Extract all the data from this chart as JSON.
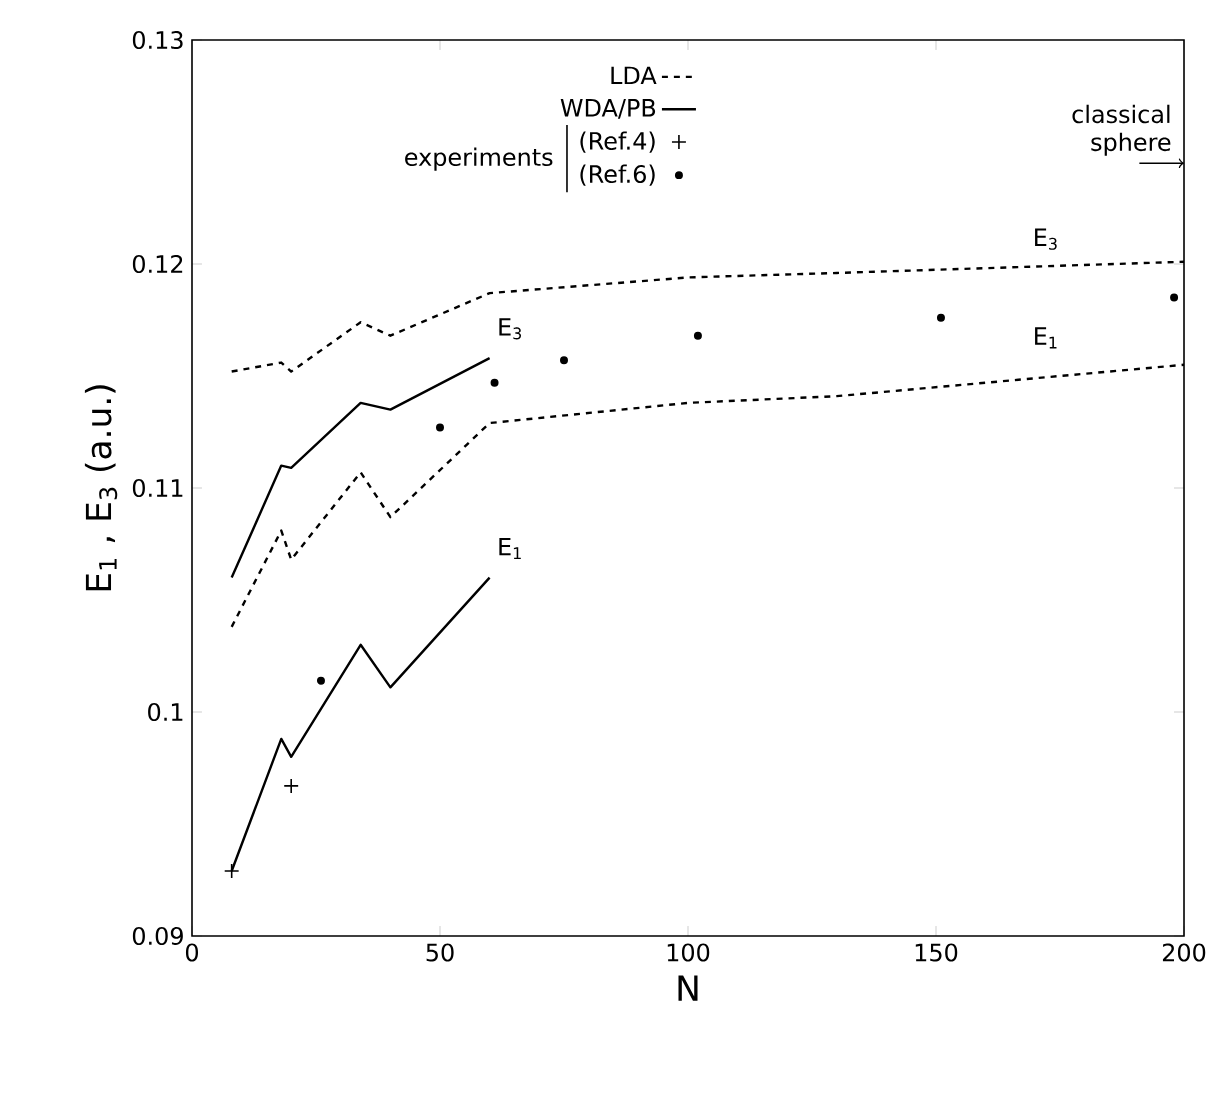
{
  "chart_data": {
    "type": "line",
    "xlabel": "N",
    "ylabel": "E$_{1}$ , E$_{3}$ (a.u.)",
    "xlim": [
      0,
      200
    ],
    "xticks": [
      0,
      50,
      100,
      150,
      200
    ],
    "ylim": [
      0.09,
      0.13
    ],
    "yticks": [
      0.09,
      0.1,
      0.11,
      0.12,
      0.13
    ],
    "grid": false,
    "legend": "top",
    "legend_title": "experiments",
    "series": [
      {
        "name": "LDA",
        "color": "#000000",
        "line_style": "dashed",
        "marker": "none",
        "x": [
          8,
          18,
          20,
          34,
          40,
          60,
          100,
          130,
          200
        ],
        "values": [
          0.1038,
          0.1081,
          0.1068,
          0.1107,
          0.1087,
          0.1129,
          0.1138,
          0.1141,
          0.1155
        ]
      },
      {
        "color": "#000000",
        "line_style": "dashed",
        "marker": "none",
        "x": [
          8,
          18,
          20,
          34,
          40,
          60,
          100,
          130,
          200
        ],
        "values": [
          0.1152,
          0.1156,
          0.1152,
          0.1174,
          0.1168,
          0.1187,
          0.1194,
          0.1196,
          0.1201
        ]
      },
      {
        "name": "WDA/PB",
        "color": "#000000",
        "line_style": "solid",
        "marker": "none",
        "x": [
          8,
          18,
          20,
          34,
          40,
          60
        ],
        "values": [
          0.0929,
          0.0988,
          0.098,
          0.103,
          0.1011,
          0.106
        ]
      },
      {
        "color": "#000000",
        "line_style": "solid",
        "marker": "none",
        "x": [
          8,
          18,
          20,
          34,
          40,
          60
        ],
        "values": [
          0.106,
          0.111,
          0.1109,
          0.1138,
          0.1135,
          0.1158
        ]
      },
      {
        "name": "(Ref.4)",
        "type": "scatter",
        "color": "#000000",
        "marker": "cross",
        "x": [
          8,
          20
        ],
        "values": [
          0.0929,
          0.0967
        ]
      },
      {
        "name": "(Ref.6)",
        "type": "scatter",
        "color": "#000000",
        "marker": "circle",
        "x": [
          26,
          50,
          61,
          75,
          102,
          151,
          198
        ],
        "values": [
          0.1014,
          0.1127,
          0.1147,
          0.1157,
          0.1168,
          0.1176,
          0.1185
        ]
      }
    ],
    "annotations": [
      "E$_{3}$",
      "E$_{1}$",
      "E$_{3}$",
      "E$_{1}$",
      "classical sphere"
    ]
  }
}
